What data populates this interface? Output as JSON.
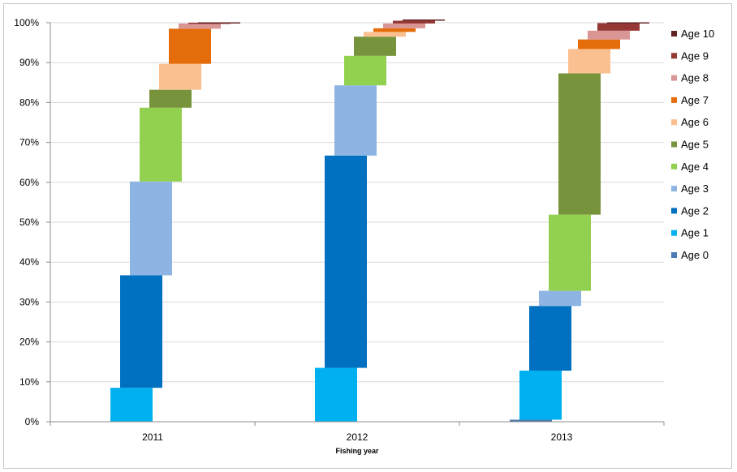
{
  "chart_data": {
    "type": "bar",
    "subtype": "floating-waterfall",
    "title": "",
    "xlabel": "Fishing year",
    "ylabel": "",
    "categories": [
      "2011",
      "2012",
      "2013"
    ],
    "ylim": [
      0,
      100
    ],
    "y_ticks": [
      "0%",
      "10%",
      "20%",
      "30%",
      "40%",
      "50%",
      "60%",
      "70%",
      "80%",
      "90%",
      "100%"
    ],
    "grid": true,
    "legend_position": "right",
    "series": [
      {
        "name": "Age 0",
        "color": "#4a7ab0",
        "values": [
          0,
          0,
          0.5
        ]
      },
      {
        "name": "Age 1",
        "color": "#00b0f0",
        "values": [
          8.5,
          13.5,
          12.3
        ]
      },
      {
        "name": "Age 2",
        "color": "#0070c0",
        "values": [
          28.2,
          53.2,
          16.2
        ]
      },
      {
        "name": "Age 3",
        "color": "#8db4e2",
        "values": [
          23.5,
          17.6,
          3.8
        ]
      },
      {
        "name": "Age 4",
        "color": "#92d050",
        "values": [
          18.5,
          7.4,
          19.1
        ]
      },
      {
        "name": "Age 5",
        "color": "#77933c",
        "values": [
          4.5,
          4.8,
          35.4
        ]
      },
      {
        "name": "Age 6",
        "color": "#fac090",
        "values": [
          6.5,
          1.2,
          6.1
        ]
      },
      {
        "name": "Age 7",
        "color": "#e46c0a",
        "values": [
          8.8,
          0.9,
          2.4
        ]
      },
      {
        "name": "Age 8",
        "color": "#da9694",
        "values": [
          1.3,
          1.2,
          2.2
        ]
      },
      {
        "name": "Age 9",
        "color": "#953735",
        "values": [
          0.2,
          0.7,
          1.9
        ]
      },
      {
        "name": "Age 10",
        "color": "#632523",
        "values": [
          0.1,
          0.3,
          0.2
        ]
      }
    ]
  }
}
